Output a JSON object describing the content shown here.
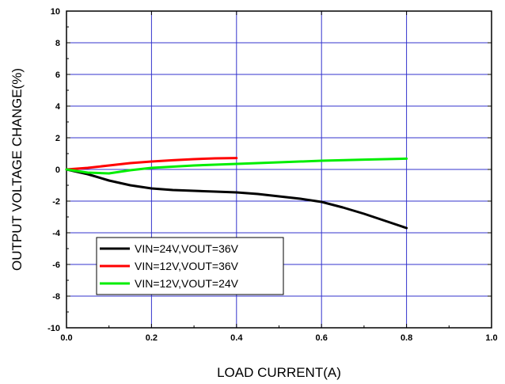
{
  "chart_data": {
    "type": "line",
    "title": "",
    "xlabel": "LOAD CURRENT(A)",
    "ylabel": "OUTPUT VOLTAGE CHANGE(%)",
    "xlim": [
      0.0,
      1.0
    ],
    "ylim": [
      -10,
      10
    ],
    "xticks": [
      0.0,
      0.2,
      0.4,
      0.6,
      0.8,
      1.0
    ],
    "xtick_labels": [
      "0.0",
      "0.2",
      "0.4",
      "0.6",
      "0.8",
      "1.0"
    ],
    "yticks": [
      -10,
      -8,
      -6,
      -4,
      -2,
      0,
      2,
      4,
      6,
      8,
      10
    ],
    "ytick_labels": [
      "-10",
      "-8",
      "-6",
      "-4",
      "-2",
      "0",
      "2",
      "4",
      "6",
      "8",
      "10"
    ],
    "grid": true,
    "legend_position": "lower-left",
    "series": [
      {
        "name": "VIN=24V,VOUT=36V",
        "color": "#000000",
        "x": [
          0.0,
          0.05,
          0.1,
          0.15,
          0.2,
          0.25,
          0.3,
          0.35,
          0.4,
          0.45,
          0.5,
          0.55,
          0.6,
          0.65,
          0.7,
          0.75,
          0.8
        ],
        "y": [
          0.0,
          -0.3,
          -0.7,
          -1.0,
          -1.2,
          -1.3,
          -1.35,
          -1.4,
          -1.45,
          -1.55,
          -1.7,
          -1.85,
          -2.05,
          -2.4,
          -2.8,
          -3.25,
          -3.7
        ]
      },
      {
        "name": "VIN=12V,VOUT=36V",
        "color": "#ff0000",
        "x": [
          0.0,
          0.05,
          0.1,
          0.15,
          0.2,
          0.25,
          0.3,
          0.35,
          0.4
        ],
        "y": [
          0.0,
          0.1,
          0.25,
          0.4,
          0.5,
          0.58,
          0.65,
          0.7,
          0.72
        ]
      },
      {
        "name": "VIN=12V,VOUT=24V",
        "color": "#00ee00",
        "x": [
          0.0,
          0.05,
          0.1,
          0.15,
          0.2,
          0.3,
          0.4,
          0.5,
          0.6,
          0.7,
          0.8
        ],
        "y": [
          0.0,
          -0.2,
          -0.25,
          -0.05,
          0.1,
          0.25,
          0.35,
          0.45,
          0.55,
          0.62,
          0.68
        ]
      }
    ]
  },
  "colors": {
    "grid": "#3333cc",
    "frame": "#000000",
    "background": "#ffffff"
  }
}
